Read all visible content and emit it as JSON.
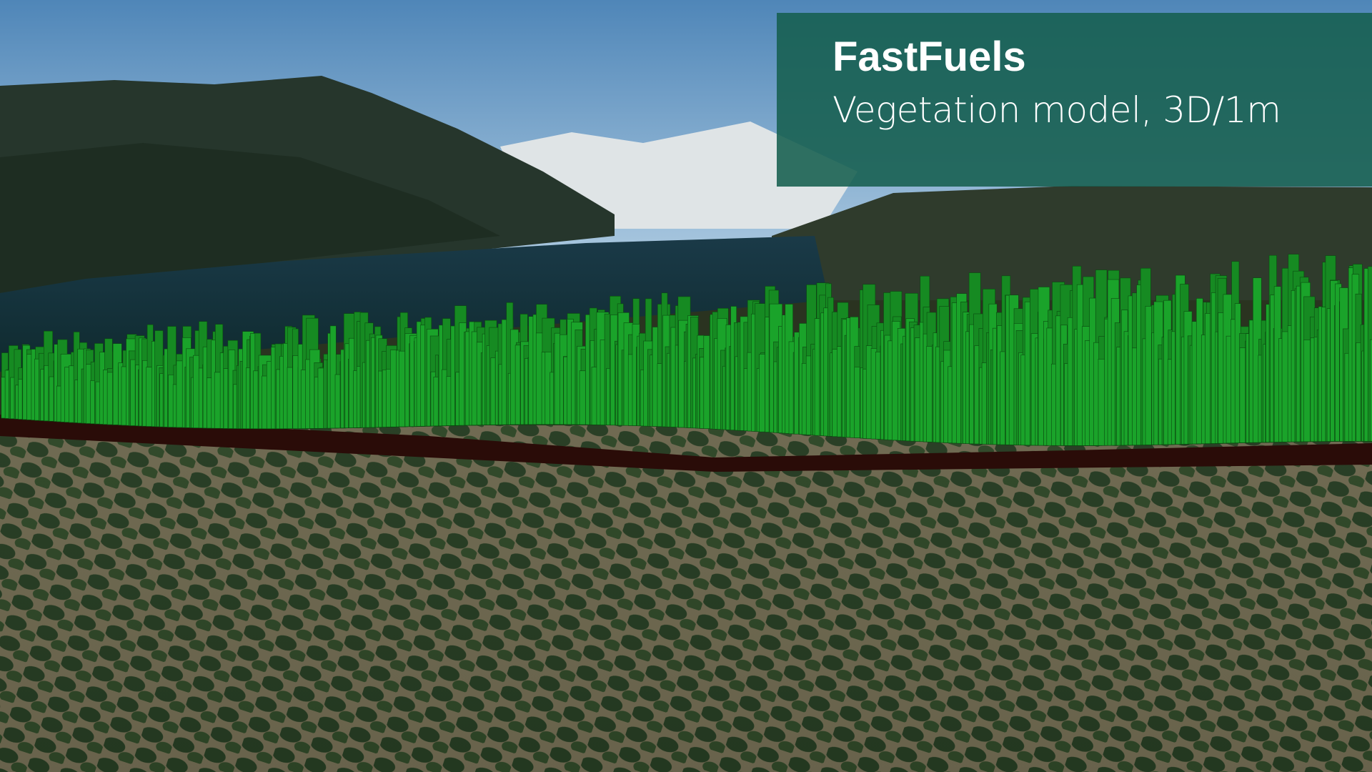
{
  "overlay": {
    "title": "FastFuels",
    "subtitle": "Vegetation model, 3D/1m"
  }
}
